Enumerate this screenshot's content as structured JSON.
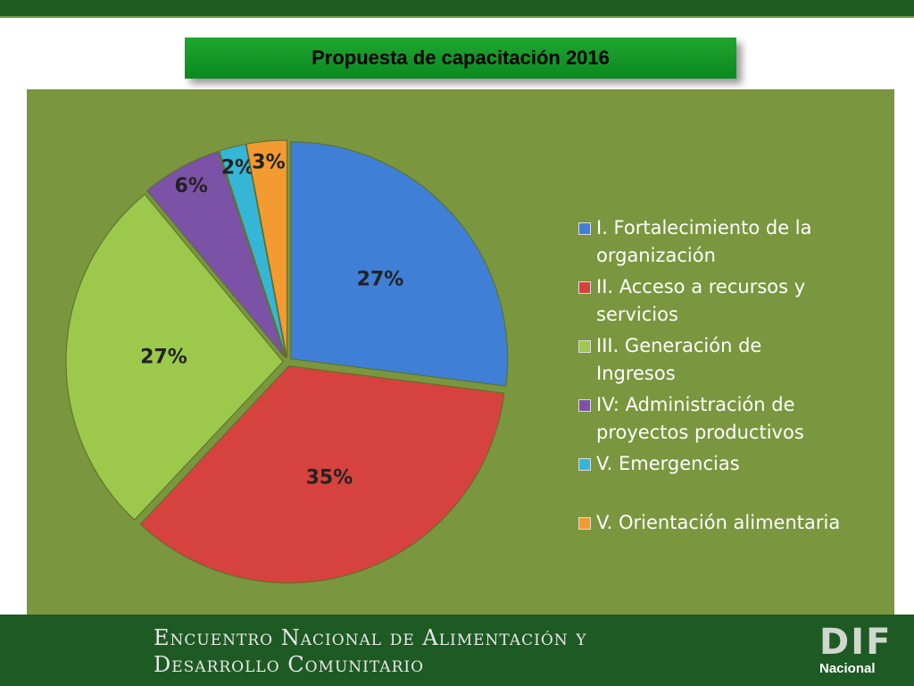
{
  "chart_data": {
    "type": "pie",
    "title": "Propuesta de capacitación 2016",
    "categories": [
      "I. Fortalecimiento de la organización",
      "II. Acceso a recursos y servicios",
      "III. Generación de Ingresos",
      "IV: Administración de proyectos productivos",
      "V. Emergencias",
      "V. Orientación alimentaria"
    ],
    "values": [
      27,
      35,
      27,
      6,
      2,
      3
    ],
    "value_labels": [
      "27%",
      "35%",
      "27%",
      "6%",
      "2%",
      "3%"
    ],
    "colors": [
      "#3f7fd6",
      "#d6423e",
      "#9cc84c",
      "#7b52a6",
      "#36b6d6",
      "#f39a30"
    ],
    "legend": "right"
  },
  "footer": {
    "line1": "Encuentro Nacional de Alimentación y",
    "line2": "Desarrollo Comunitario",
    "logo": "DIF",
    "logo_sub": "Nacional"
  }
}
